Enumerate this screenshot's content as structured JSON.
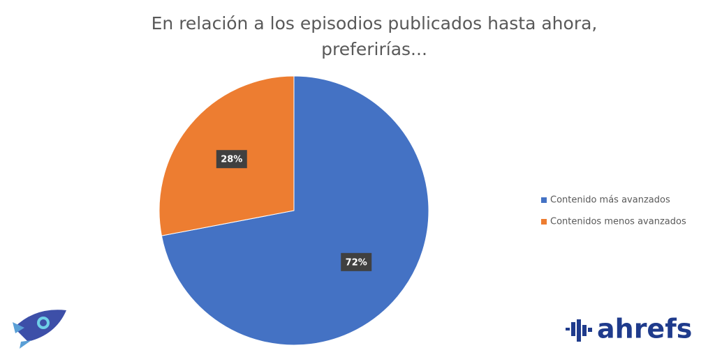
{
  "chart_data": {
    "type": "pie",
    "title": [
      "En relación a los episodios publicados hasta ahora,",
      "preferirías..."
    ],
    "categories": [
      "Contenido más avanzados",
      "Contenidos menos avanzados"
    ],
    "values": [
      72,
      28
    ],
    "value_labels": [
      "72%",
      "28%"
    ],
    "colors": [
      "#4472c4",
      "#ed7d31"
    ],
    "legend": "right"
  },
  "watermark": "ahrefs"
}
